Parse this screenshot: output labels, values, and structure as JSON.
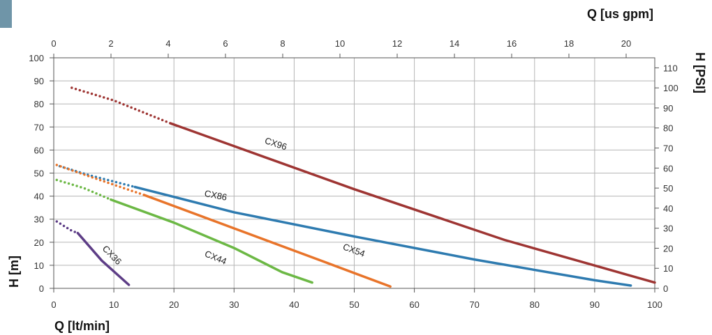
{
  "chart_data": {
    "type": "line",
    "xlabel": "Q [lt/min]",
    "ylabel": "H [m]",
    "x2label": "Q [us gpm]",
    "y2label": "H [PSI]",
    "xlim": [
      0,
      100
    ],
    "ylim": [
      0,
      100
    ],
    "x2lim": [
      0,
      21
    ],
    "y2lim": [
      0,
      115
    ],
    "x_ticks": [
      "0",
      "10",
      "20",
      "30",
      "40",
      "50",
      "60",
      "70",
      "80",
      "90",
      "100"
    ],
    "y_ticks": [
      "0",
      "10",
      "20",
      "30",
      "40",
      "50",
      "60",
      "70",
      "80",
      "90",
      "100"
    ],
    "x2_ticks": [
      "0",
      "2",
      "4",
      "6",
      "8",
      "10",
      "12",
      "14",
      "16",
      "18",
      "20"
    ],
    "y2_ticks": [
      "0",
      "10",
      "20",
      "30",
      "40",
      "50",
      "60",
      "70",
      "80",
      "90",
      "100",
      "110"
    ],
    "grid": true,
    "colors": {
      "CX96": "#9e3533",
      "CX86": "#2e7bb0",
      "CX54": "#e8742a",
      "CX44": "#6cb845",
      "CX36": "#5d3d86",
      "accent": "#6f95a8"
    },
    "series": [
      {
        "name": "CX96",
        "dotted": [
          [
            3,
            87
          ],
          [
            10,
            81.5
          ],
          [
            19.5,
            71.5
          ]
        ],
        "solid": [
          [
            19.5,
            71.5
          ],
          [
            50,
            43
          ],
          [
            75,
            21
          ],
          [
            100,
            2.5
          ]
        ],
        "label_at": [
          35,
          63
        ]
      },
      {
        "name": "CX86",
        "dotted": [
          [
            1,
            53
          ],
          [
            6,
            49
          ],
          [
            13.5,
            44
          ]
        ],
        "solid": [
          [
            13.5,
            44
          ],
          [
            30,
            33
          ],
          [
            50,
            22.5
          ],
          [
            70,
            12.5
          ],
          [
            90,
            3.5
          ],
          [
            96,
            1.2
          ]
        ],
        "label_at": [
          25,
          40
        ]
      },
      {
        "name": "CX54",
        "dotted": [
          [
            0.5,
            53.5
          ],
          [
            6,
            48.5
          ],
          [
            15,
            40.5
          ]
        ],
        "solid": [
          [
            15,
            40.5
          ],
          [
            30,
            26
          ],
          [
            45,
            11.5
          ],
          [
            56,
            0.8
          ]
        ],
        "label_at": [
          48,
          17
        ]
      },
      {
        "name": "CX44",
        "dotted": [
          [
            0.5,
            47
          ],
          [
            5,
            43.5
          ],
          [
            9.5,
            38.5
          ]
        ],
        "solid": [
          [
            9.5,
            38.5
          ],
          [
            20,
            28.5
          ],
          [
            30,
            17.5
          ],
          [
            38,
            7
          ],
          [
            43,
            2.5
          ]
        ],
        "label_at": [
          25,
          14
        ]
      },
      {
        "name": "CX36",
        "dotted": [
          [
            0.5,
            29
          ],
          [
            3,
            25
          ],
          [
            4,
            24
          ]
        ],
        "solid": [
          [
            4,
            24
          ],
          [
            8,
            12
          ],
          [
            12.5,
            1.5
          ]
        ],
        "label_at": [
          8,
          17
        ]
      }
    ]
  }
}
